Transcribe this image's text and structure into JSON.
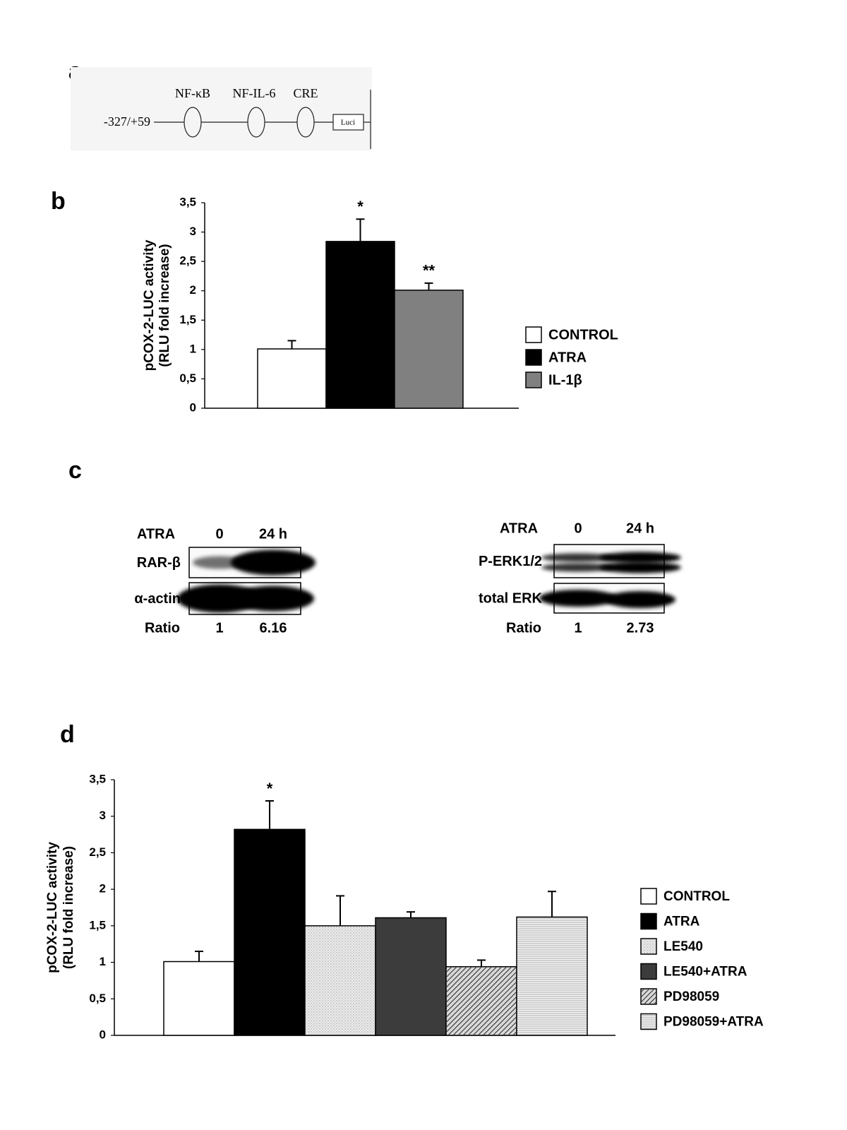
{
  "panel_labels": [
    "a",
    "b",
    "c",
    "d"
  ],
  "promoter_diagram": {
    "construct": "-327/+59",
    "sites": [
      "NF-κB",
      "NF-IL-6",
      "CRE"
    ],
    "reporter": "Luci"
  },
  "chart_data": [
    {
      "type": "bar",
      "ylabel": [
        "pCOX-2-LUC activity",
        "(RLU fold increase)"
      ],
      "categories": [
        "CONTROL",
        "ATRA",
        "IL-1β"
      ],
      "values": [
        1.01,
        2.84,
        2.01
      ],
      "errors": [
        0.14,
        0.38,
        0.12
      ],
      "significance": [
        null,
        "*",
        "**"
      ],
      "colors": [
        "#ffffff",
        "#000000",
        "#808080"
      ],
      "patterns": [
        "none",
        "none",
        "none"
      ],
      "ylim": [
        0,
        3.5
      ],
      "yticks": [
        0,
        {
          "value": 0.5,
          "label": "0,5"
        },
        1,
        {
          "value": 1.5,
          "label": "1,5"
        },
        2,
        {
          "value": 2.5,
          "label": "2,5"
        },
        3,
        {
          "value": 3.5,
          "label": "3,5"
        }
      ],
      "legend": "right"
    },
    {
      "type": "bar",
      "ylabel": [
        "pCOX-2-LUC activity",
        "(RLU fold increase)"
      ],
      "categories": [
        "CONTROL",
        "ATRA",
        "LE540",
        "LE540+ATRA",
        "PD98059",
        "PD98059+ATRA"
      ],
      "values": [
        1.01,
        2.82,
        1.5,
        1.61,
        0.94,
        1.62
      ],
      "errors": [
        0.14,
        0.39,
        0.41,
        0.08,
        0.09,
        0.35
      ],
      "significance": [
        null,
        "*",
        null,
        null,
        null,
        null
      ],
      "colors": [
        "#ffffff",
        "#000000",
        "#ececec",
        "#3c3c3c",
        "#d8d8d8",
        "#f4f4f4"
      ],
      "patterns": [
        "none",
        "none",
        "dots",
        "none",
        "diagonal",
        "horizontal"
      ],
      "ylim": [
        0,
        3.5
      ],
      "yticks": [
        0,
        {
          "value": 0.5,
          "label": "0,5"
        },
        1,
        {
          "value": 1.5,
          "label": "1,5"
        },
        2,
        {
          "value": 2.5,
          "label": "2,5"
        },
        3,
        {
          "value": 3.5,
          "label": "3,5"
        }
      ],
      "legend": "right"
    }
  ],
  "western_blots": [
    {
      "treatment": "ATRA",
      "lanes": [
        "0",
        "24 h"
      ],
      "rows": [
        "RAR-β",
        "α-actin"
      ],
      "ratio_label": "Ratio",
      "ratios": [
        1,
        6.16
      ]
    },
    {
      "treatment": "ATRA",
      "lanes": [
        "0",
        "24 h"
      ],
      "rows": [
        "P-ERK1/2",
        "total ERK"
      ],
      "ratio_label": "Ratio",
      "ratios": [
        1,
        2.73
      ]
    }
  ]
}
